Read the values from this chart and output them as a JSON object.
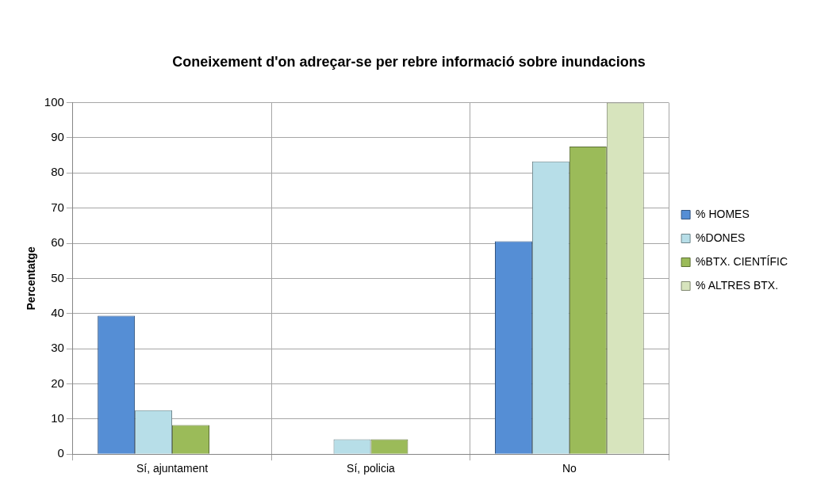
{
  "chart_data": {
    "type": "bar",
    "title": "Coneixement d'on adreçar-se per rebre informació sobre inundacions",
    "ylabel": "Percentatge",
    "categories": [
      "Sí, ajuntament",
      "Sí, policia",
      "No"
    ],
    "series": [
      {
        "name": "% HOMES",
        "color": "#558ed5",
        "values": [
          39.4,
          0,
          60.6
        ]
      },
      {
        "name": "%DONES",
        "color": "#b7dee8",
        "values": [
          12.5,
          4.2,
          83.3
        ]
      },
      {
        "name": "%BTX. CIENTÍFIC",
        "color": "#9bbb59",
        "values": [
          8.3,
          4.2,
          87.5
        ]
      },
      {
        "name": "% ALTRES BTX.",
        "color": "#d7e4bd",
        "values": [
          0,
          0,
          100
        ]
      }
    ],
    "ylim": [
      0,
      100
    ],
    "yticks": [
      0,
      10,
      20,
      30,
      40,
      50,
      60,
      70,
      80,
      90,
      100
    ],
    "grid": true,
    "legend": "right"
  }
}
